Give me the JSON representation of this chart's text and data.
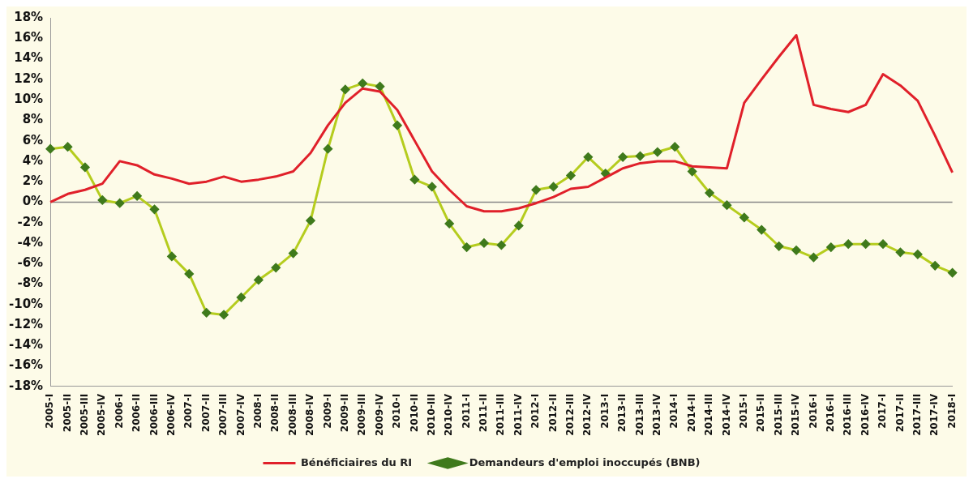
{
  "chart_data": {
    "type": "line",
    "categories": [
      "2005-I",
      "2005-II",
      "2005-III",
      "2005-IV",
      "2006-I",
      "2006-II",
      "2006-III",
      "2006-IV",
      "2007-I",
      "2007-II",
      "2007-III",
      "2007-IV",
      "2008-I",
      "2008-II",
      "2008-III",
      "2008-IV",
      "2009-I",
      "2009-II",
      "2009-III",
      "2009-IV",
      "2010-I",
      "2010-II",
      "2010-III",
      "2010-IV",
      "2011-I",
      "2011-II",
      "2011-III",
      "2011-IV",
      "2012-I",
      "2012-II",
      "2012-III",
      "2012-IV",
      "2013-I",
      "2013-II",
      "2013-III",
      "2013-IV",
      "2014-I",
      "2014-II",
      "2014-III",
      "2014-IV",
      "2015-I",
      "2015-II",
      "2015-III",
      "2015-IV",
      "2016-I",
      "2016-II",
      "2016-III",
      "2016-IV",
      "2017-I",
      "2017-II",
      "2017-III",
      "2017-IV",
      "2018-I"
    ],
    "series": [
      {
        "name": "Bénéficiaires du RI",
        "color": "#e0202a",
        "marker": "none",
        "values": [
          0.0,
          0.8,
          1.2,
          1.8,
          4.0,
          3.6,
          2.7,
          2.3,
          1.8,
          2.0,
          2.5,
          2.0,
          2.2,
          2.5,
          3.0,
          4.8,
          7.5,
          9.7,
          11.1,
          10.8,
          9.0,
          6.0,
          3.0,
          1.2,
          -0.4,
          -0.9,
          -0.9,
          -0.6,
          -0.1,
          0.5,
          1.3,
          1.5,
          2.4,
          3.3,
          3.8,
          4.0,
          4.0,
          3.5,
          3.4,
          3.3,
          9.7,
          12.0,
          14.2,
          16.3,
          9.5,
          9.1,
          8.8,
          9.5,
          12.5,
          11.4,
          9.9,
          6.5,
          2.9
        ]
      },
      {
        "name": "Demandeurs d'emploi inoccupés (BNB)",
        "color": "#b5cc1e",
        "marker": "diamond",
        "values": [
          5.2,
          5.4,
          3.4,
          0.2,
          -0.1,
          0.6,
          -0.7,
          -5.3,
          -7.0,
          -10.8,
          -11.0,
          -9.3,
          -7.6,
          -6.4,
          -5.0,
          -1.8,
          5.2,
          11.0,
          11.6,
          11.3,
          7.5,
          2.2,
          1.5,
          -2.1,
          -4.4,
          -4.0,
          -4.2,
          -2.3,
          1.2,
          1.5,
          2.6,
          4.4,
          2.8,
          4.4,
          4.5,
          4.9,
          5.4,
          3.0,
          0.9,
          -0.3,
          -1.5,
          -2.7,
          -4.3,
          -4.7,
          -5.4,
          -4.4,
          -4.1,
          -4.1,
          -4.1,
          -4.9,
          -5.1,
          -6.2,
          -6.9
        ]
      }
    ],
    "ylim": [
      -18,
      18
    ],
    "yticks": [
      {
        "value": -18,
        "label": "-18%"
      },
      {
        "value": -16,
        "label": "-16%"
      },
      {
        "value": -14,
        "label": "-14%"
      },
      {
        "value": -12,
        "label": "-12%"
      },
      {
        "value": -10,
        "label": "-10%"
      },
      {
        "value": -8,
        "label": "-8%"
      },
      {
        "value": -6,
        "label": "-6%"
      },
      {
        "value": -4,
        "label": "-4%"
      },
      {
        "value": -2,
        "label": "-2%"
      },
      {
        "value": 0,
        "label": "0%"
      },
      {
        "value": 2,
        "label": "2%"
      },
      {
        "value": 4,
        "label": "4%"
      },
      {
        "value": 6,
        "label": "6%"
      },
      {
        "value": 8,
        "label": "8%"
      },
      {
        "value": 10,
        "label": "10%"
      },
      {
        "value": 12,
        "label": "12%"
      },
      {
        "value": 14,
        "label": "14%"
      },
      {
        "value": 16,
        "label": "16%"
      },
      {
        "value": 18,
        "label": "18%"
      }
    ],
    "ref_lines": [
      {
        "axis": "y",
        "value": 0,
        "color": "#888888"
      }
    ],
    "grid": false,
    "legend": "bottom"
  }
}
